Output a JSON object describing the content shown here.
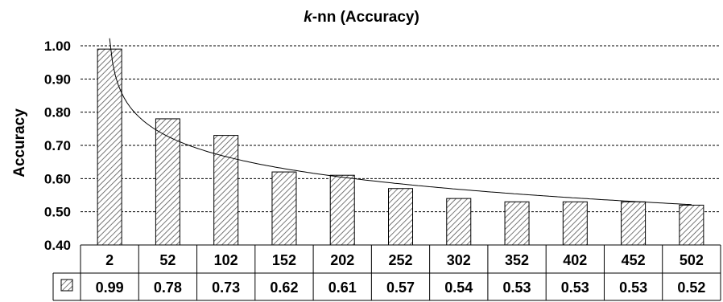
{
  "chart_data": {
    "type": "bar",
    "title_italic": "k",
    "title_rest": "-nn (Accuracy)",
    "ylabel": "Accuracy",
    "xlabel": "",
    "ylim": [
      0.4,
      1.0
    ],
    "yticks": [
      "0.40",
      "0.50",
      "0.60",
      "0.70",
      "0.80",
      "0.90",
      "1.00"
    ],
    "grid": "horizontal-dashed",
    "categories": [
      "2",
      "52",
      "102",
      "152",
      "202",
      "252",
      "302",
      "352",
      "402",
      "452",
      "502"
    ],
    "values": [
      0.99,
      0.78,
      0.73,
      0.62,
      0.61,
      0.57,
      0.54,
      0.53,
      0.53,
      0.53,
      0.52
    ],
    "value_labels": [
      "0.99",
      "0.78",
      "0.73",
      "0.62",
      "0.61",
      "0.57",
      "0.54",
      "0.53",
      "0.53",
      "0.53",
      "0.52"
    ],
    "data_table": true,
    "trendline": "logarithmic",
    "bar_fill": "diagonal-hatch",
    "colors": {
      "bar_stroke": "#000000",
      "hatch": "#555555",
      "grid": "#000000"
    }
  }
}
